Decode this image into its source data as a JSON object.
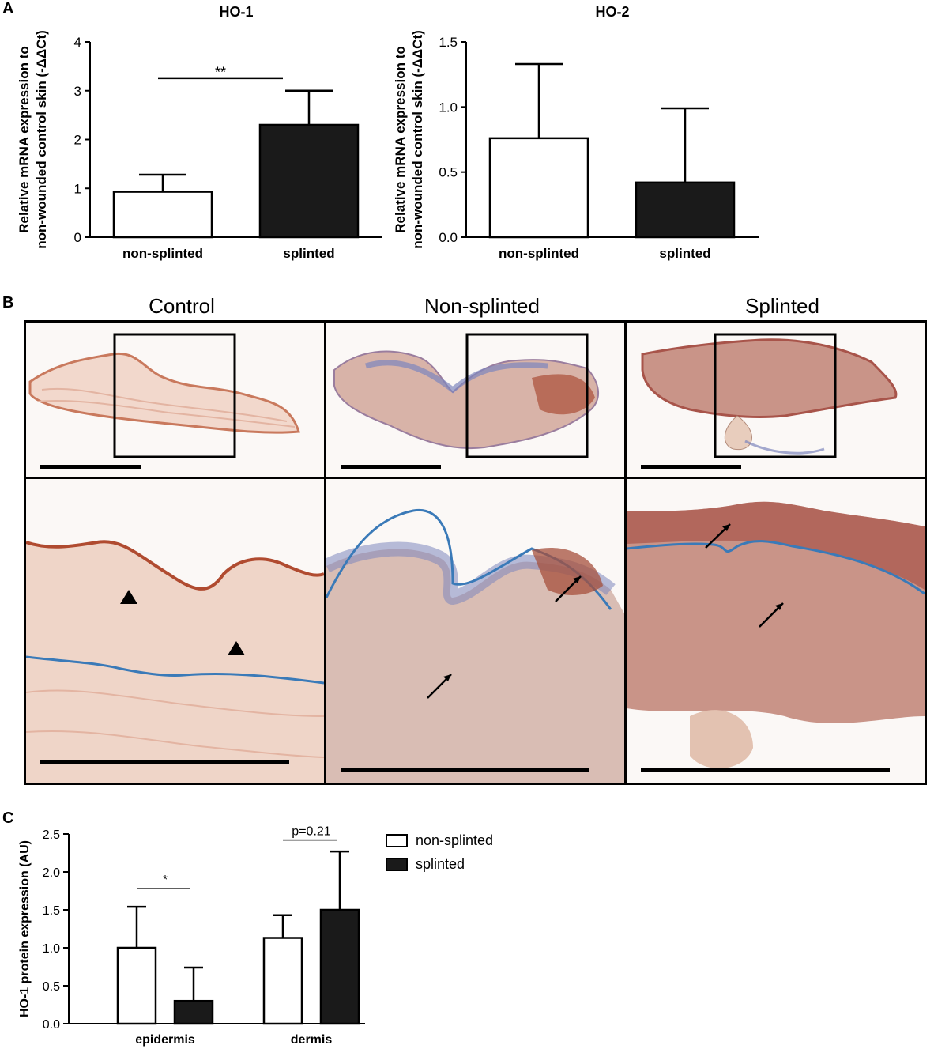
{
  "panel_labels": {
    "a": "A",
    "b": "B",
    "c": "C"
  },
  "colors": {
    "open": "#ffffff",
    "filled": "#1a1a1a",
    "epidermis_line": "#3a7ab8",
    "stain_brown": "#b86a52",
    "stain_blue": "#7d86bd"
  },
  "histology": {
    "columns": [
      "Control",
      "Non-splinted",
      "Splinted"
    ]
  },
  "chart_data": [
    {
      "type": "bar",
      "title": "HO-1",
      "ylabel_lines": [
        "Relative mRNA expression to",
        "non-wounded control skin (-ΔΔCt)"
      ],
      "categories": [
        "non-splinted",
        "splinted"
      ],
      "values": [
        0.93,
        2.3
      ],
      "errors_upper": [
        1.28,
        3.0
      ],
      "fills": [
        "open",
        "filled"
      ],
      "ylim": [
        0,
        4
      ],
      "yticks": [
        "0",
        "1",
        "2",
        "3",
        "4"
      ],
      "significance": [
        {
          "label": "**",
          "between": [
            0,
            1
          ],
          "y": 3.25
        }
      ]
    },
    {
      "type": "bar",
      "title": "HO-2",
      "ylabel_lines": [
        "Relative mRNA expression to",
        "non-wounded control skin (-ΔΔCt)"
      ],
      "categories": [
        "non-splinted",
        "splinted"
      ],
      "values": [
        0.76,
        0.42
      ],
      "errors_upper": [
        1.33,
        0.99
      ],
      "fills": [
        "open",
        "filled"
      ],
      "ylim": [
        0,
        1.5
      ],
      "yticks": [
        "0.0",
        "0.5",
        "1.0",
        "1.5"
      ],
      "significance": []
    },
    {
      "type": "bar",
      "title": "",
      "ylabel_lines": [
        "HO-1 protein expression (AU)"
      ],
      "categories": [
        "epidermis",
        "dermis"
      ],
      "series": [
        {
          "name": "non-splinted",
          "values": [
            1.0,
            1.13
          ],
          "errors_upper": [
            1.54,
            1.43
          ],
          "fill": "open"
        },
        {
          "name": "splinted",
          "values": [
            0.3,
            1.5
          ],
          "errors_upper": [
            0.74,
            2.27
          ],
          "fill": "filled"
        }
      ],
      "ylim": [
        0,
        2.5
      ],
      "yticks": [
        "0.0",
        "0.5",
        "1.0",
        "1.5",
        "2.0",
        "2.5"
      ],
      "significance": [
        {
          "label": "*",
          "category": 0,
          "y": 1.78
        },
        {
          "label": "p=0.21",
          "category": 1,
          "y": 2.42
        }
      ],
      "legend": [
        "non-splinted",
        "splinted"
      ],
      "legend_position": "right"
    }
  ]
}
